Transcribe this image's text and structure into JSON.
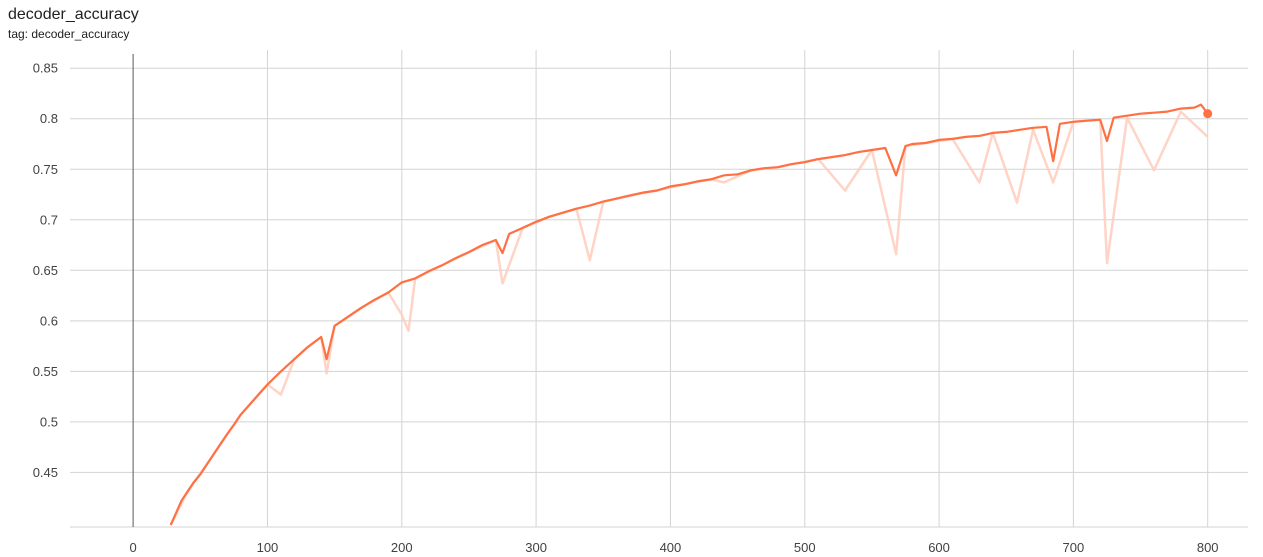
{
  "header": {
    "title": "decoder_accuracy",
    "subtitle": "tag: decoder_accuracy"
  },
  "colors": {
    "smoothed": "#ff7043",
    "raw": "#ffccbc",
    "grid": "#d3d3d3",
    "zero_axis": "#757575"
  },
  "chart_data": {
    "type": "line",
    "title": "decoder_accuracy",
    "xlabel": "",
    "ylabel": "",
    "xlim": [
      -47,
      830
    ],
    "ylim": [
      0.396,
      0.868
    ],
    "x_ticks": [
      0,
      100,
      200,
      300,
      400,
      500,
      600,
      700,
      800
    ],
    "y_ticks": [
      0.45,
      0.5,
      0.55,
      0.6,
      0.65,
      0.7,
      0.75,
      0.8,
      0.85
    ],
    "x_tick_labels": [
      "0",
      "100",
      "200",
      "300",
      "400",
      "500",
      "600",
      "700",
      "800"
    ],
    "y_tick_labels": [
      "0.45",
      "0.5",
      "0.55",
      "0.6",
      "0.65",
      "0.7",
      "0.75",
      "0.8",
      "0.85"
    ],
    "grid": true,
    "legend": "none",
    "series": [
      {
        "style": "smoothed",
        "x": [
          28,
          32,
          36,
          40,
          45,
          50,
          55,
          60,
          65,
          70,
          75,
          80,
          90,
          100,
          110,
          120,
          130,
          140,
          144,
          150,
          160,
          170,
          180,
          190,
          200,
          210,
          220,
          230,
          240,
          250,
          260,
          270,
          275,
          280,
          290,
          300,
          310,
          320,
          330,
          340,
          350,
          360,
          370,
          380,
          390,
          400,
          410,
          420,
          430,
          440,
          450,
          460,
          470,
          480,
          490,
          500,
          510,
          520,
          530,
          540,
          550,
          560,
          568,
          575,
          580,
          590,
          600,
          610,
          620,
          630,
          640,
          650,
          660,
          670,
          680,
          685,
          690,
          700,
          710,
          720,
          725,
          730,
          740,
          750,
          760,
          770,
          780,
          790,
          795,
          800
        ],
        "y": [
          0.398,
          0.41,
          0.422,
          0.43,
          0.44,
          0.448,
          0.458,
          0.468,
          0.478,
          0.488,
          0.497,
          0.507,
          0.522,
          0.537,
          0.55,
          0.562,
          0.574,
          0.584,
          0.562,
          0.595,
          0.604,
          0.613,
          0.621,
          0.628,
          0.638,
          0.642,
          0.649,
          0.655,
          0.662,
          0.668,
          0.675,
          0.68,
          0.667,
          0.686,
          0.692,
          0.698,
          0.703,
          0.707,
          0.711,
          0.714,
          0.718,
          0.721,
          0.724,
          0.727,
          0.729,
          0.733,
          0.735,
          0.738,
          0.74,
          0.744,
          0.745,
          0.749,
          0.751,
          0.752,
          0.755,
          0.757,
          0.76,
          0.762,
          0.764,
          0.767,
          0.769,
          0.771,
          0.744,
          0.773,
          0.775,
          0.776,
          0.779,
          0.78,
          0.782,
          0.783,
          0.786,
          0.787,
          0.789,
          0.791,
          0.792,
          0.758,
          0.795,
          0.797,
          0.798,
          0.799,
          0.778,
          0.801,
          0.803,
          0.805,
          0.806,
          0.807,
          0.81,
          0.811,
          0.814,
          0.805
        ]
      },
      {
        "style": "raw",
        "x": [
          28,
          40,
          60,
          80,
          100,
          110,
          120,
          130,
          140,
          144,
          150,
          160,
          170,
          190,
          200,
          205,
          210,
          230,
          250,
          270,
          275,
          290,
          310,
          330,
          340,
          350,
          370,
          390,
          410,
          430,
          440,
          460,
          480,
          490,
          510,
          530,
          550,
          568,
          575,
          590,
          610,
          630,
          640,
          658,
          670,
          685,
          700,
          720,
          725,
          740,
          760,
          780,
          800
        ],
        "y": [
          0.398,
          0.43,
          0.468,
          0.507,
          0.537,
          0.527,
          0.562,
          0.574,
          0.584,
          0.548,
          0.595,
          0.604,
          0.613,
          0.628,
          0.606,
          0.59,
          0.642,
          0.655,
          0.668,
          0.68,
          0.637,
          0.692,
          0.703,
          0.711,
          0.66,
          0.718,
          0.724,
          0.729,
          0.735,
          0.74,
          0.737,
          0.749,
          0.752,
          0.755,
          0.76,
          0.729,
          0.769,
          0.666,
          0.773,
          0.776,
          0.78,
          0.737,
          0.786,
          0.717,
          0.789,
          0.737,
          0.797,
          0.799,
          0.657,
          0.801,
          0.749,
          0.807,
          0.782
        ]
      }
    ]
  }
}
